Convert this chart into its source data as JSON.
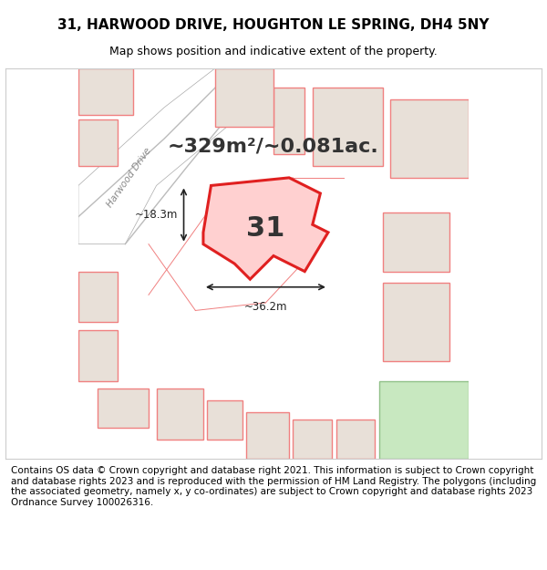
{
  "title_line1": "31, HARWOOD DRIVE, HOUGHTON LE SPRING, DH4 5NY",
  "title_line2": "Map shows position and indicative extent of the property.",
  "footer_text": "Contains OS data © Crown copyright and database right 2021. This information is subject to Crown copyright and database rights 2023 and is reproduced with the permission of HM Land Registry. The polygons (including the associated geometry, namely x, y co-ordinates) are subject to Crown copyright and database rights 2023 Ordnance Survey 100026316.",
  "map_bg": "#f0eeeb",
  "map_border": "#cccccc",
  "road_color": "#c8c8c8",
  "building_fill": "#e8e0d8",
  "building_stroke": "#f08080",
  "highlight_fill": "#f5c8c8",
  "highlight_stroke": "#e02020",
  "green_fill": "#c8e8c0",
  "area_text": "~329m²/~0.081ac.",
  "label_31": "31",
  "dim_width": "~36.2m",
  "dim_height": "~18.3m",
  "title_fontsize": 11,
  "subtitle_fontsize": 9,
  "footer_fontsize": 7.5,
  "area_fontsize": 16,
  "label_fontsize": 22
}
